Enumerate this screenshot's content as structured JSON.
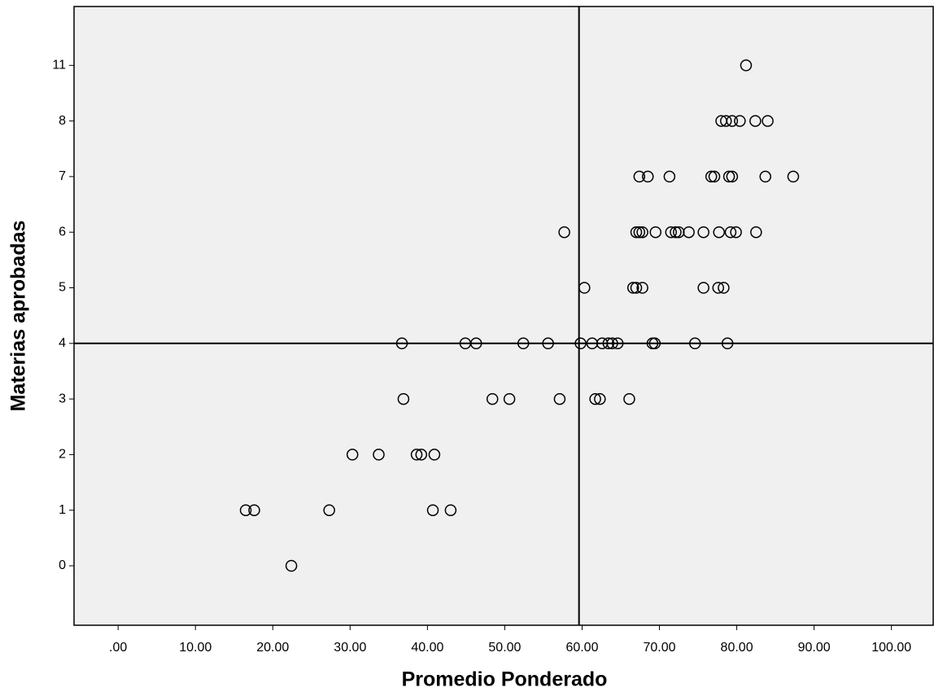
{
  "chart_data": {
    "type": "scatter",
    "x_label": "Promedio Ponderado",
    "y_label": "Materias aprobadas",
    "x": [
      81.2,
      78.0,
      78.6,
      79.4,
      80.4,
      82.4,
      84.0,
      67.4,
      68.5,
      71.3,
      76.7,
      77.1,
      79.0,
      79.4,
      83.7,
      87.3,
      57.7,
      67.0,
      67.4,
      67.8,
      69.5,
      71.5,
      72.1,
      72.5,
      73.8,
      75.7,
      77.7,
      79.2,
      79.9,
      82.5,
      60.3,
      66.6,
      67.0,
      67.8,
      75.7,
      77.6,
      78.3,
      36.7,
      44.9,
      46.3,
      52.4,
      55.6,
      59.8,
      61.3,
      62.6,
      63.4,
      63.9,
      64.6,
      69.1,
      69.4,
      74.6,
      78.8,
      36.9,
      48.4,
      50.6,
      57.1,
      61.7,
      62.3,
      66.1,
      30.3,
      33.7,
      38.6,
      39.2,
      40.9,
      16.5,
      17.6,
      27.3,
      40.7,
      43.0,
      22.4
    ],
    "y": [
      11,
      8,
      8,
      8,
      8,
      8,
      8,
      7,
      7,
      7,
      7,
      7,
      7,
      7,
      7,
      7,
      6,
      6,
      6,
      6,
      6,
      6,
      6,
      6,
      6,
      6,
      6,
      6,
      6,
      6,
      5,
      5,
      5,
      5,
      5,
      5,
      5,
      4,
      4,
      4,
      4,
      4,
      4,
      4,
      4,
      4,
      4,
      4,
      4,
      4,
      4,
      4,
      3,
      3,
      3,
      3,
      3,
      3,
      3,
      2,
      2,
      2,
      2,
      2,
      1,
      1,
      1,
      1,
      1,
      0
    ],
    "xlim": [
      -5.7,
      105.4
    ],
    "xticks": [
      {
        "value": 0,
        "label": ".00"
      },
      {
        "value": 10,
        "label": "10.00"
      },
      {
        "value": 20,
        "label": "20.00"
      },
      {
        "value": 30,
        "label": "30.00"
      },
      {
        "value": 40,
        "label": "40.00"
      },
      {
        "value": 50,
        "label": "50.00"
      },
      {
        "value": 60,
        "label": "60.00"
      },
      {
        "value": 70,
        "label": "70.00"
      },
      {
        "value": 80,
        "label": "80.00"
      },
      {
        "value": 90,
        "label": "90.00"
      },
      {
        "value": 100,
        "label": "100.00"
      }
    ],
    "yscale": "ordinal",
    "yticks": [
      0,
      1,
      2,
      3,
      4,
      5,
      6,
      7,
      8,
      11
    ],
    "reference_lines": {
      "x": 59.6,
      "y": 4
    },
    "marker_color": "#000000",
    "background": "#f0f0f0"
  }
}
